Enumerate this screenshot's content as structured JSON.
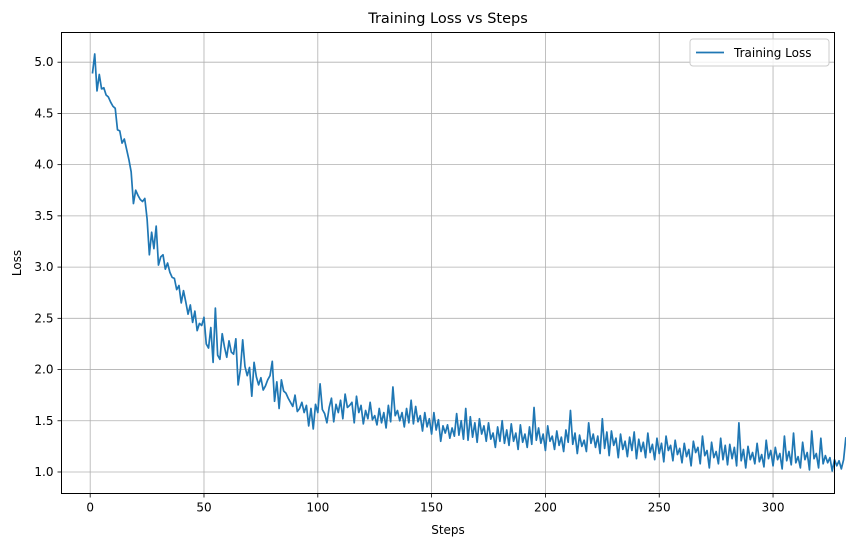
{
  "chart_data": {
    "type": "line",
    "title": "Training Loss vs Steps",
    "xlabel": "Steps",
    "ylabel": "Loss",
    "xlim": [
      -12.6,
      327
    ],
    "ylim": [
      0.79,
      5.29
    ],
    "xticks": [
      0,
      50,
      100,
      150,
      200,
      250,
      300
    ],
    "yticks": [
      1.0,
      1.5,
      2.0,
      2.5,
      3.0,
      3.5,
      4.0,
      4.5,
      5.0
    ],
    "xtick_labels": [
      "0",
      "50",
      "100",
      "150",
      "200",
      "250",
      "300"
    ],
    "ytick_labels": [
      "1.0",
      "1.5",
      "2.0",
      "2.5",
      "3.0",
      "3.5",
      "4.0",
      "4.5",
      "5.0"
    ],
    "grid": true,
    "legend_position": "top-right",
    "series": [
      {
        "name": "Training Loss",
        "color": "#1f77b4",
        "x_start": 1,
        "x_step": 1,
        "values": [
          4.89,
          5.08,
          4.72,
          4.88,
          4.74,
          4.75,
          4.68,
          4.66,
          4.61,
          4.57,
          4.55,
          4.34,
          4.33,
          4.21,
          4.25,
          4.15,
          4.05,
          3.93,
          3.62,
          3.75,
          3.7,
          3.66,
          3.64,
          3.67,
          3.47,
          3.12,
          3.34,
          3.18,
          3.4,
          3.02,
          3.1,
          3.12,
          2.98,
          3.04,
          2.95,
          2.9,
          2.89,
          2.78,
          2.82,
          2.65,
          2.77,
          2.66,
          2.54,
          2.63,
          2.46,
          2.57,
          2.38,
          2.45,
          2.43,
          2.51,
          2.25,
          2.21,
          2.41,
          2.07,
          2.6,
          2.14,
          2.1,
          2.35,
          2.22,
          2.12,
          2.28,
          2.17,
          2.15,
          2.3,
          1.85,
          2.0,
          2.29,
          2.03,
          1.94,
          2.02,
          1.74,
          2.07,
          1.93,
          1.85,
          1.92,
          1.8,
          1.84,
          1.9,
          1.94,
          2.08,
          1.69,
          1.88,
          1.62,
          1.9,
          1.79,
          1.77,
          1.72,
          1.68,
          1.64,
          1.75,
          1.59,
          1.62,
          1.68,
          1.58,
          1.65,
          1.45,
          1.62,
          1.42,
          1.66,
          1.58,
          1.86,
          1.61,
          1.57,
          1.48,
          1.63,
          1.72,
          1.49,
          1.66,
          1.58,
          1.7,
          1.52,
          1.76,
          1.63,
          1.65,
          1.68,
          1.48,
          1.74,
          1.58,
          1.65,
          1.47,
          1.6,
          1.52,
          1.68,
          1.51,
          1.55,
          1.46,
          1.62,
          1.48,
          1.58,
          1.43,
          1.65,
          1.49,
          1.83,
          1.55,
          1.6,
          1.5,
          1.58,
          1.44,
          1.62,
          1.48,
          1.7,
          1.47,
          1.64,
          1.49,
          1.55,
          1.4,
          1.58,
          1.44,
          1.52,
          1.37,
          1.58,
          1.41,
          1.51,
          1.3,
          1.45,
          1.38,
          1.46,
          1.33,
          1.43,
          1.35,
          1.57,
          1.36,
          1.5,
          1.32,
          1.62,
          1.31,
          1.54,
          1.34,
          1.48,
          1.29,
          1.52,
          1.37,
          1.45,
          1.3,
          1.48,
          1.32,
          1.38,
          1.24,
          1.44,
          1.3,
          1.5,
          1.28,
          1.41,
          1.26,
          1.47,
          1.3,
          1.38,
          1.22,
          1.46,
          1.29,
          1.37,
          1.24,
          1.44,
          1.27,
          1.63,
          1.31,
          1.43,
          1.28,
          1.37,
          1.21,
          1.45,
          1.3,
          1.35,
          1.22,
          1.4,
          1.26,
          1.34,
          1.2,
          1.41,
          1.29,
          1.6,
          1.27,
          1.38,
          1.18,
          1.36,
          1.25,
          1.31,
          1.2,
          1.48,
          1.28,
          1.37,
          1.24,
          1.35,
          1.18,
          1.52,
          1.23,
          1.39,
          1.16,
          1.4,
          1.26,
          1.33,
          1.14,
          1.37,
          1.22,
          1.3,
          1.15,
          1.34,
          1.21,
          1.39,
          1.13,
          1.32,
          1.2,
          1.29,
          1.14,
          1.38,
          1.19,
          1.27,
          1.12,
          1.33,
          1.18,
          1.28,
          1.1,
          1.35,
          1.21,
          1.26,
          1.11,
          1.31,
          1.17,
          1.23,
          1.09,
          1.28,
          1.15,
          1.22,
          1.06,
          1.3,
          1.19,
          1.24,
          1.08,
          1.35,
          1.16,
          1.21,
          1.04,
          1.29,
          1.14,
          1.2,
          1.08,
          1.33,
          1.12,
          1.26,
          1.07,
          1.27,
          1.13,
          1.24,
          1.06,
          1.48,
          1.11,
          1.22,
          1.04,
          1.25,
          1.12,
          1.19,
          1.08,
          1.28,
          1.1,
          1.17,
          1.05,
          1.31,
          1.13,
          1.21,
          1.06,
          1.24,
          1.12,
          1.18,
          1.03,
          1.35,
          1.11,
          1.2,
          1.07,
          1.38,
          1.09,
          1.15,
          1.04,
          1.29,
          1.12,
          1.19,
          1.02,
          1.4,
          1.13,
          1.18,
          1.04,
          1.33,
          1.08,
          1.16,
          1.09,
          1.14,
          1.01,
          1.12,
          1.06,
          1.11,
          1.03,
          1.12,
          1.34
        ]
      }
    ]
  }
}
